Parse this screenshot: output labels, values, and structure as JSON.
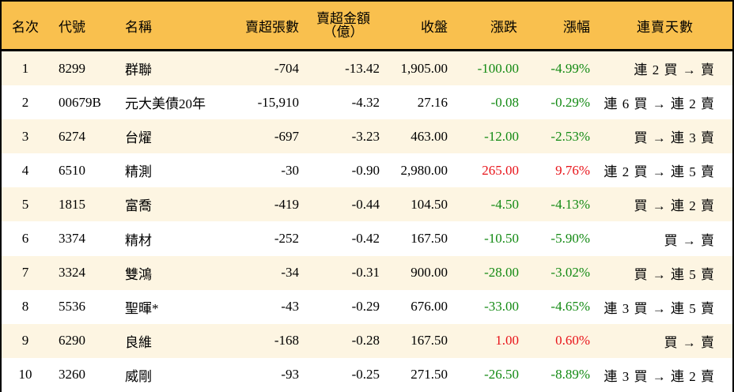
{
  "colors": {
    "header_bg": "#F9C04E",
    "row_alt_bg": "#FDF5E2",
    "down": "#138A13",
    "up": "#E8141A"
  },
  "headers": {
    "rank": "名次",
    "code": "代號",
    "name": "名稱",
    "volume": "賣超張數",
    "amount_line1": "賣超金額",
    "amount_line2": "（億）",
    "close": "收盤",
    "change": "漲跌",
    "pct": "漲幅",
    "streak": "連賣天數"
  },
  "rows": [
    {
      "rank": "1",
      "code": "8299",
      "name": "群聯",
      "volume": "-704",
      "amount": "-13.42",
      "close": "1,905.00",
      "change": "-100.00",
      "pct": "-4.99%",
      "dir": "down",
      "streak": "連 2 買 → 賣"
    },
    {
      "rank": "2",
      "code": "00679B",
      "name": "元大美債20年",
      "volume": "-15,910",
      "amount": "-4.32",
      "close": "27.16",
      "change": "-0.08",
      "pct": "-0.29%",
      "dir": "down",
      "streak": "連 6 買 → 連 2 賣"
    },
    {
      "rank": "3",
      "code": "6274",
      "name": "台燿",
      "volume": "-697",
      "amount": "-3.23",
      "close": "463.00",
      "change": "-12.00",
      "pct": "-2.53%",
      "dir": "down",
      "streak": "買 → 連 3 賣"
    },
    {
      "rank": "4",
      "code": "6510",
      "name": "精測",
      "volume": "-30",
      "amount": "-0.90",
      "close": "2,980.00",
      "change": "265.00",
      "pct": "9.76%",
      "dir": "up",
      "streak": "連 2 買 → 連 5 賣"
    },
    {
      "rank": "5",
      "code": "1815",
      "name": "富喬",
      "volume": "-419",
      "amount": "-0.44",
      "close": "104.50",
      "change": "-4.50",
      "pct": "-4.13%",
      "dir": "down",
      "streak": "買 → 連 2 賣"
    },
    {
      "rank": "6",
      "code": "3374",
      "name": "精材",
      "volume": "-252",
      "amount": "-0.42",
      "close": "167.50",
      "change": "-10.50",
      "pct": "-5.90%",
      "dir": "down",
      "streak": "買 → 賣"
    },
    {
      "rank": "7",
      "code": "3324",
      "name": "雙鴻",
      "volume": "-34",
      "amount": "-0.31",
      "close": "900.00",
      "change": "-28.00",
      "pct": "-3.02%",
      "dir": "down",
      "streak": "買 → 連 5 賣"
    },
    {
      "rank": "8",
      "code": "5536",
      "name": "聖暉*",
      "volume": "-43",
      "amount": "-0.29",
      "close": "676.00",
      "change": "-33.00",
      "pct": "-4.65%",
      "dir": "down",
      "streak": "連 3 買 → 連 5 賣"
    },
    {
      "rank": "9",
      "code": "6290",
      "name": "良維",
      "volume": "-168",
      "amount": "-0.28",
      "close": "167.50",
      "change": "1.00",
      "pct": "0.60%",
      "dir": "up",
      "streak": "買 → 賣"
    },
    {
      "rank": "10",
      "code": "3260",
      "name": "威剛",
      "volume": "-93",
      "amount": "-0.25",
      "close": "271.50",
      "change": "-26.50",
      "pct": "-8.89%",
      "dir": "down",
      "streak": "連 3 買 → 連 2 賣"
    }
  ]
}
